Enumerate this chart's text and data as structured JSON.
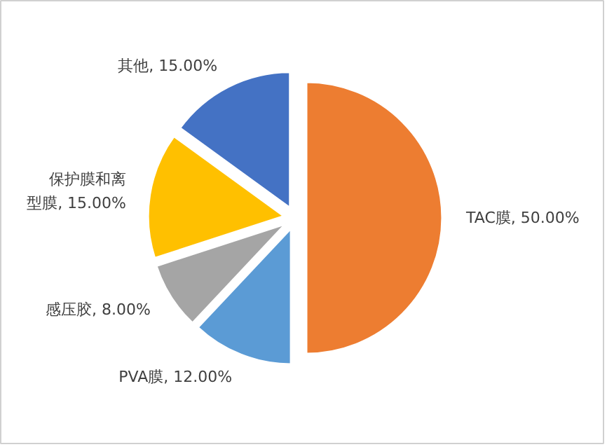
{
  "chart_data": {
    "type": "pie",
    "categories": [
      "TAC膜",
      "PVA膜",
      "感压胶",
      "保护膜和离型膜",
      "其他"
    ],
    "values": [
      50,
      12,
      8,
      15,
      15
    ],
    "colors": [
      "#ed7d31",
      "#5b9bd5",
      "#a5a5a5",
      "#ffc000",
      "#4472c4"
    ],
    "value_labels": [
      "50.00%",
      "12.00%",
      "8.00%",
      "15.00%",
      "15.00%"
    ]
  }
}
